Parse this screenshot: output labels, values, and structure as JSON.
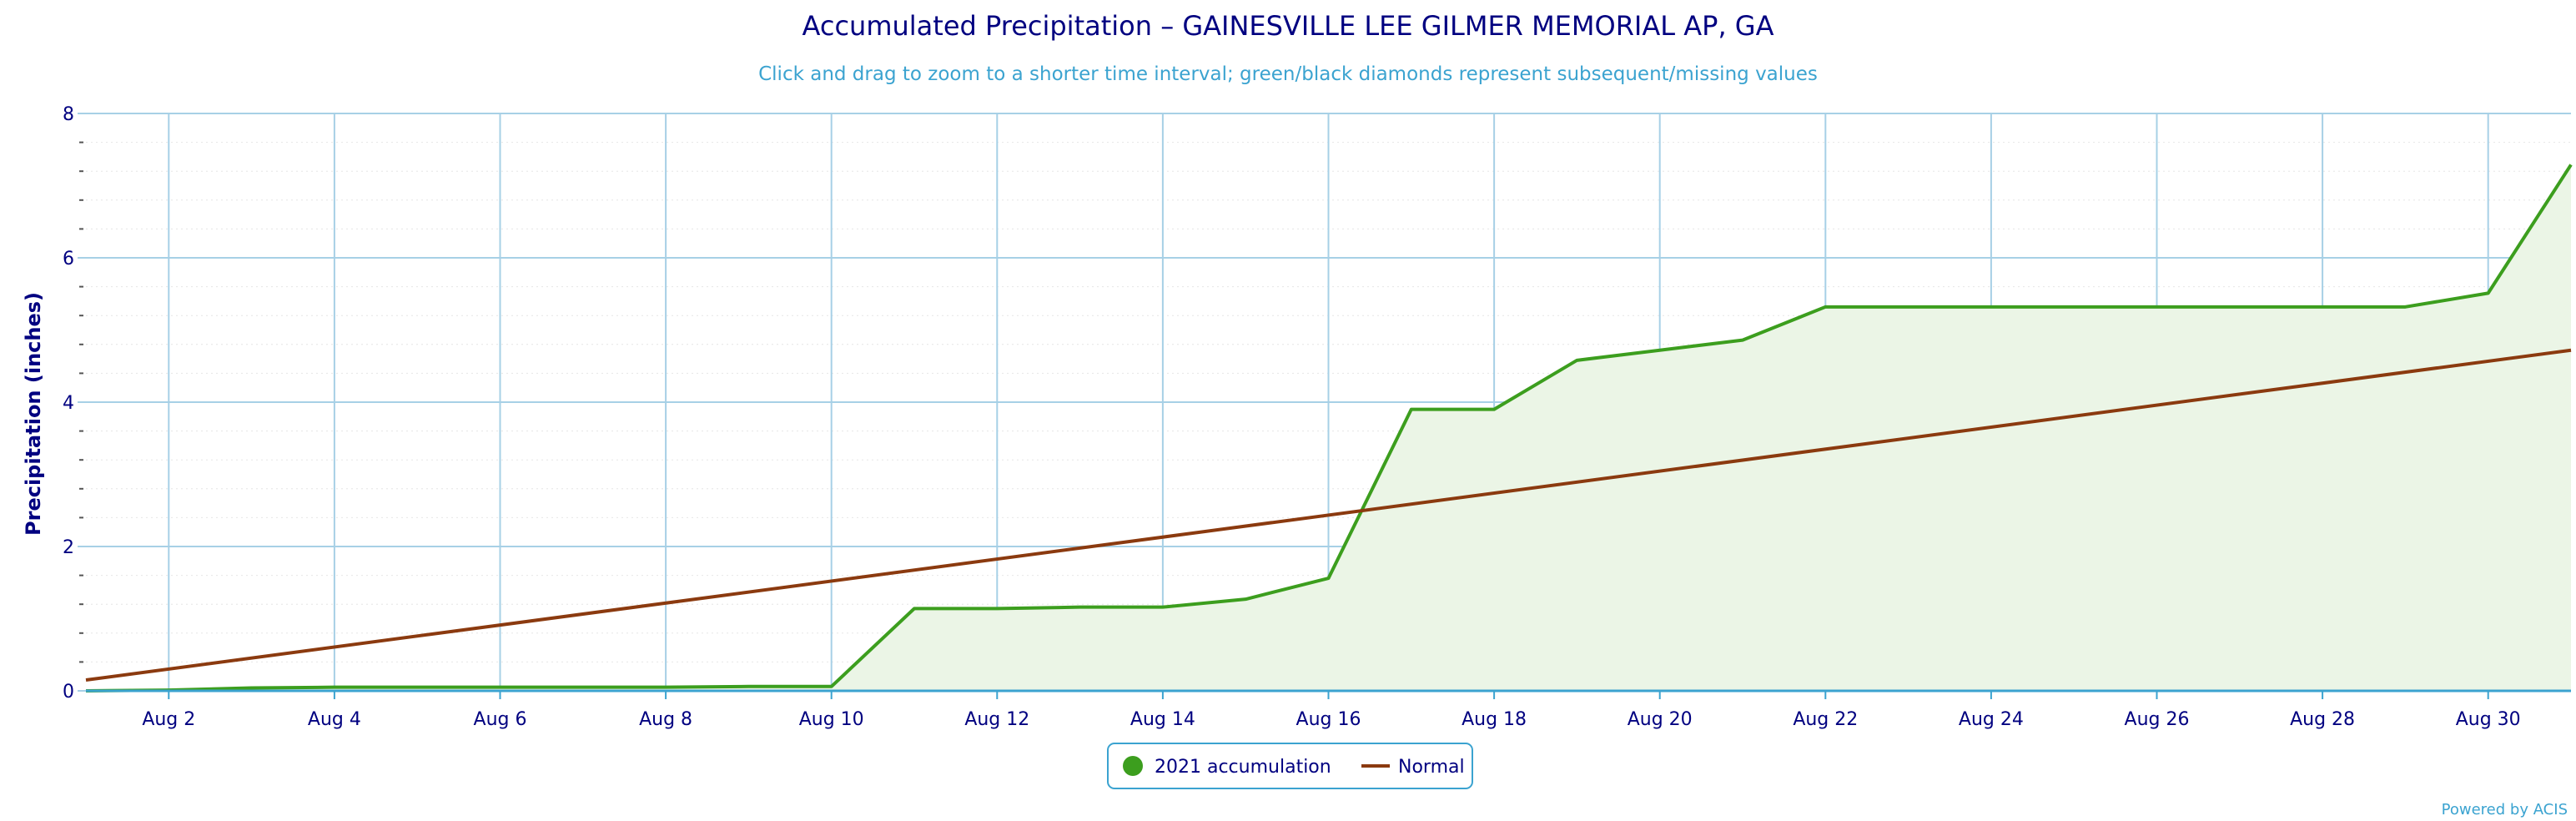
{
  "chart_data": {
    "type": "line",
    "title": "Accumulated Precipitation – GAINESVILLE LEE GILMER MEMORIAL AP, GA",
    "subtitle": "Click and drag to zoom to a shorter time interval; green/black diamonds represent subsequent/missing values",
    "ylabel": "Precipitation (inches)",
    "xlabel": "",
    "ylim": [
      0,
      8
    ],
    "y_ticks": [
      0,
      2,
      4,
      6,
      8
    ],
    "x_range": [
      "2021-08-01",
      "2021-08-31"
    ],
    "x_tick_labels": [
      "Aug 2",
      "Aug 4",
      "Aug 6",
      "Aug 8",
      "Aug 10",
      "Aug 12",
      "Aug 14",
      "Aug 16",
      "Aug 18",
      "Aug 20",
      "Aug 22",
      "Aug 24",
      "Aug 26",
      "Aug 28",
      "Aug 30"
    ],
    "x_tick_days": [
      2,
      4,
      6,
      8,
      10,
      12,
      14,
      16,
      18,
      20,
      22,
      24,
      26,
      28,
      30
    ],
    "grid": true,
    "legend_position": "bottom-center",
    "series": [
      {
        "name": "2021 accumulation",
        "color": "#3c9e1e",
        "fill": "#ebf5e6",
        "days": [
          1,
          2,
          3,
          4,
          5,
          6,
          7,
          8,
          9,
          10,
          11,
          12,
          13,
          14,
          15,
          16,
          17,
          18,
          19,
          20,
          21,
          22,
          23,
          24,
          25,
          26,
          27,
          28,
          29,
          30,
          31
        ],
        "values": [
          0.0,
          0.01,
          0.04,
          0.05,
          0.05,
          0.05,
          0.05,
          0.05,
          0.06,
          0.06,
          1.14,
          1.14,
          1.16,
          1.16,
          1.27,
          1.56,
          3.9,
          3.9,
          4.58,
          4.72,
          4.86,
          5.32,
          5.32,
          5.32,
          5.32,
          5.32,
          5.32,
          5.32,
          5.32,
          5.51,
          7.29
        ]
      },
      {
        "name": "Normal",
        "color": "#8b3a0f",
        "days": [
          1,
          31
        ],
        "values": [
          0.15,
          4.72
        ]
      }
    ],
    "credit": "Powered by ACIS"
  }
}
